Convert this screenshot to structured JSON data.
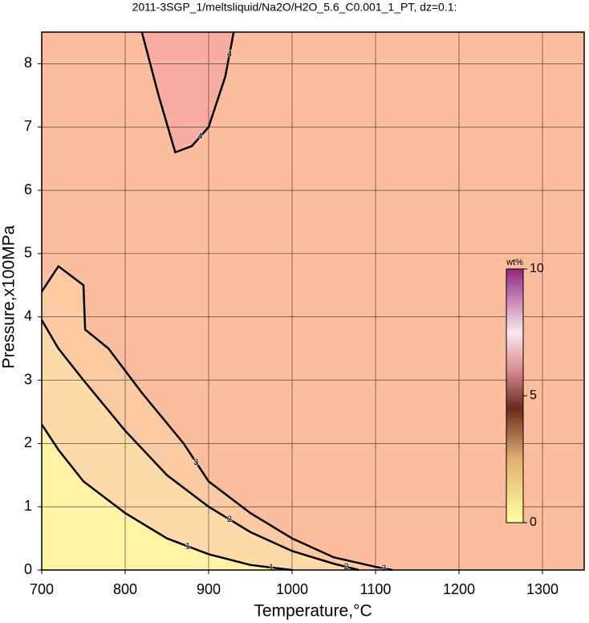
{
  "chart_data": {
    "type": "contour",
    "title": "2011-3SGP_1/meltsliquid/Na2O/H2O_5.6_C0.001_1_PT, dz=0.1:",
    "x_label": "Temperature,°C",
    "y_label": "Pressure,x100MPa",
    "xlim": [
      700,
      1350
    ],
    "ylim": [
      0,
      8.5
    ],
    "xticks": [
      700,
      800,
      900,
      1000,
      1100,
      1200,
      1300
    ],
    "yticks": [
      0,
      1,
      2,
      3,
      4,
      5,
      6,
      7,
      8
    ],
    "grid": true,
    "background": "#fcbc9e",
    "contours": [
      {
        "level": 3,
        "fill": "#fccaa2",
        "x": [
          700,
          720,
          740,
          750,
          752,
          780,
          820,
          870,
          900,
          950,
          1000,
          1050,
          1100,
          1120
        ],
        "y": [
          4.4,
          4.8,
          4.6,
          4.5,
          3.8,
          3.5,
          2.8,
          2.0,
          1.4,
          0.9,
          0.5,
          0.2,
          0.05,
          0
        ]
      },
      {
        "level": 2,
        "fill": "#fddba8",
        "x": [
          700,
          720,
          750,
          800,
          850,
          900,
          950,
          1000,
          1050,
          1080
        ],
        "y": [
          3.95,
          3.5,
          3.0,
          2.2,
          1.5,
          1.0,
          0.6,
          0.3,
          0.1,
          0
        ]
      },
      {
        "level": 1,
        "fill": "#fff3a6",
        "x": [
          700,
          720,
          750,
          800,
          850,
          900,
          950,
          1000
        ],
        "y": [
          2.3,
          1.9,
          1.4,
          0.9,
          0.5,
          0.25,
          0.08,
          0
        ]
      },
      {
        "level": 4,
        "fill": "#f9aca0",
        "x": [
          820,
          840,
          860,
          880,
          900,
          920,
          930
        ],
        "y": [
          8.5,
          7.5,
          6.6,
          6.7,
          7.0,
          7.8,
          8.5
        ]
      }
    ],
    "colorbar": {
      "label": "wt%",
      "lim": [
        0,
        10
      ],
      "ticks": [
        0,
        5,
        10
      ]
    }
  }
}
